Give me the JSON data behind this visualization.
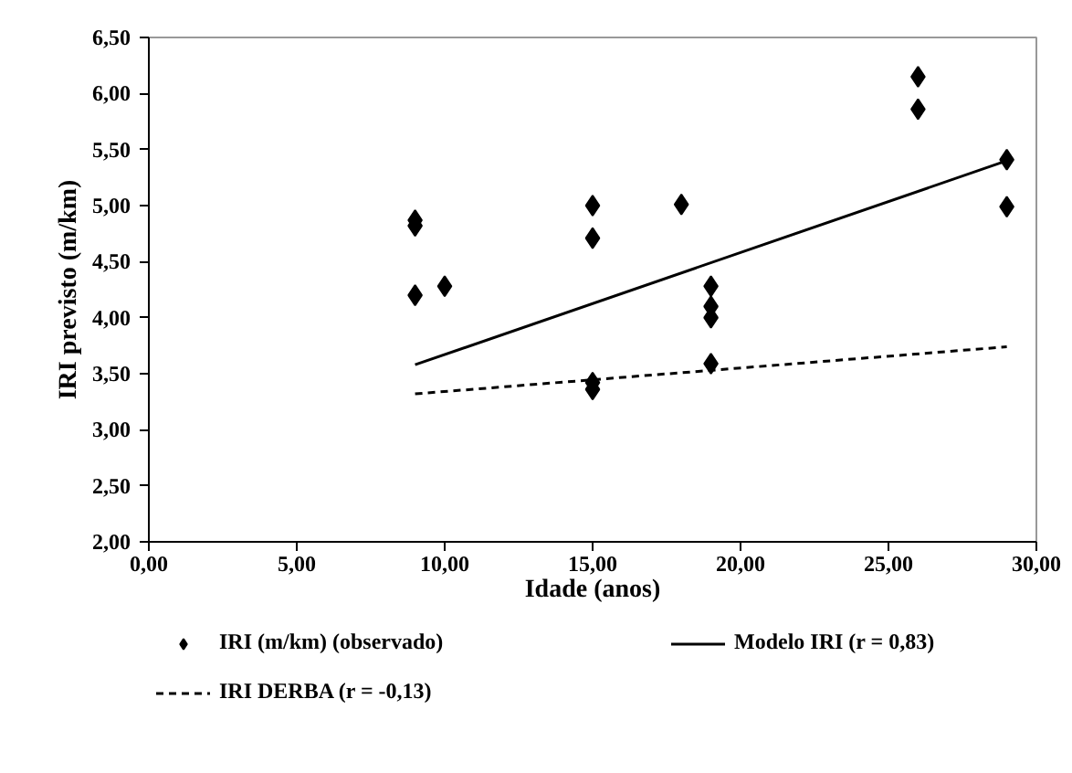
{
  "chart_data": {
    "type": "scatter",
    "xlabel": "Idade (anos)",
    "ylabel": "IRI previsto (m/km)",
    "xlim": [
      0,
      30
    ],
    "ylim": [
      2,
      6.5
    ],
    "xticks": [
      {
        "value": 0,
        "label": "0,00"
      },
      {
        "value": 5,
        "label": "5,00"
      },
      {
        "value": 10,
        "label": "10,00"
      },
      {
        "value": 15,
        "label": "15,00"
      },
      {
        "value": 20,
        "label": "20,00"
      },
      {
        "value": 25,
        "label": "25,00"
      },
      {
        "value": 30,
        "label": "30,00"
      }
    ],
    "yticks": [
      {
        "value": 2,
        "label": "2,00"
      },
      {
        "value": 2.5,
        "label": "2,50"
      },
      {
        "value": 3,
        "label": "3,00"
      },
      {
        "value": 3.5,
        "label": "3,50"
      },
      {
        "value": 4,
        "label": "4,00"
      },
      {
        "value": 4.5,
        "label": "4,50"
      },
      {
        "value": 5,
        "label": "5,00"
      },
      {
        "value": 5.5,
        "label": "5,50"
      },
      {
        "value": 6,
        "label": "6,00"
      },
      {
        "value": 6.5,
        "label": "6,50"
      }
    ],
    "grid": false,
    "legend": "bottom",
    "series": [
      {
        "name": "IRI (m/km) (observado)",
        "type": "scatter",
        "marker": "diamond",
        "color": "#000000",
        "x": [
          9,
          9,
          9,
          10,
          15,
          15,
          15,
          15,
          18,
          19,
          19,
          19,
          19,
          26,
          26,
          29,
          29
        ],
        "values": [
          4.87,
          4.82,
          4.2,
          4.28,
          5.0,
          4.71,
          3.42,
          3.36,
          5.01,
          4.28,
          4.1,
          4.0,
          3.59,
          6.15,
          5.86,
          5.41,
          4.99
        ]
      },
      {
        "name": "Modelo IRI (r = 0,83)",
        "type": "line",
        "line_style": "solid",
        "color": "#000000",
        "x": [
          9,
          29
        ],
        "values": [
          3.58,
          5.4
        ]
      },
      {
        "name": "IRI DERBA (r = -0,13)",
        "type": "line",
        "line_style": "dashed",
        "color": "#000000",
        "x": [
          9,
          29
        ],
        "values": [
          3.32,
          3.74
        ]
      }
    ]
  }
}
